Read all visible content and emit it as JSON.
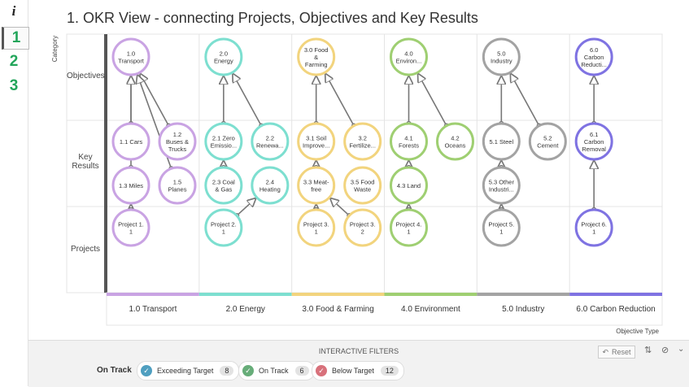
{
  "sidebar": {
    "info": "i",
    "pages": [
      "1",
      "2",
      "3"
    ]
  },
  "title": "1. OKR View - connecting Projects, Objectives and Key Results",
  "axis_labels": {
    "y": "Category",
    "x": "Objective Type"
  },
  "rows": [
    "Objectives",
    "Key Results",
    "Projects"
  ],
  "columns": [
    {
      "label": "1.0 Transport",
      "color": "#c9a3e3",
      "nodes": [
        [
          "1.0",
          "Transport"
        ],
        [
          "1.1 Cars"
        ],
        [
          "1.2",
          "Buses &",
          "Trucks"
        ],
        [
          "1.3 Miles"
        ],
        [
          "1.5",
          "Planes"
        ],
        [
          "Project 1.",
          "1"
        ]
      ]
    },
    {
      "label": "2.0 Energy",
      "color": "#7ddfd0",
      "nodes": [
        [
          "2.0",
          "Energy"
        ],
        [
          "2.1 Zero",
          "Emissio..."
        ],
        [
          "2.2",
          "Renewa..."
        ],
        [
          "2.3 Coal",
          "& Gas"
        ],
        [
          "2.4",
          "Heating"
        ],
        [
          "Project 2.",
          "1"
        ]
      ]
    },
    {
      "label": "3.0 Food & Farming",
      "color": "#f2d47e",
      "nodes": [
        [
          "3.0 Food",
          "&",
          "Farming"
        ],
        [
          "3.1 Soil",
          "Improve..."
        ],
        [
          "3.2",
          "Fertilize..."
        ],
        [
          "3.3 Meat-",
          "free"
        ],
        [
          "3.5 Food",
          "Waste"
        ],
        [
          "Project 3.",
          "1"
        ],
        [
          "Project 3.",
          "2"
        ]
      ]
    },
    {
      "label": "4.0 Environment",
      "color": "#9fcf72",
      "nodes": [
        [
          "4.0",
          "Environ..."
        ],
        [
          "4.1",
          "Forests"
        ],
        [
          "4.2",
          "Oceans"
        ],
        [
          "4.3 Land"
        ],
        [
          "Project 4.",
          "1"
        ]
      ]
    },
    {
      "label": "5.0 Industry",
      "color": "#a3a3a3",
      "nodes": [
        [
          "5.0",
          "Industry"
        ],
        [
          "5.1 Steel"
        ],
        [
          "5.2",
          "Cement"
        ],
        [
          "5.3 Other",
          "Industri..."
        ],
        [
          "Project 5.",
          "1"
        ]
      ]
    },
    {
      "label": "6.0 Carbon Reduction",
      "color": "#7f73e2",
      "nodes": [
        [
          "6.0",
          "Carbon",
          "Reducti..."
        ],
        [
          "6.1",
          "Carbon",
          "Removal"
        ],
        [
          "Project 6.",
          "1"
        ]
      ]
    }
  ],
  "filters": {
    "heading": "INTERACTIVE FILTERS",
    "reset": "Reset",
    "label": "On Track",
    "chips": [
      {
        "label": "Exceeding Target",
        "count": 8,
        "color": "#4f9fc0"
      },
      {
        "label": "On Track",
        "count": 6,
        "color": "#67ad79"
      },
      {
        "label": "Below Target",
        "count": 12,
        "color": "#d8717b"
      }
    ]
  }
}
